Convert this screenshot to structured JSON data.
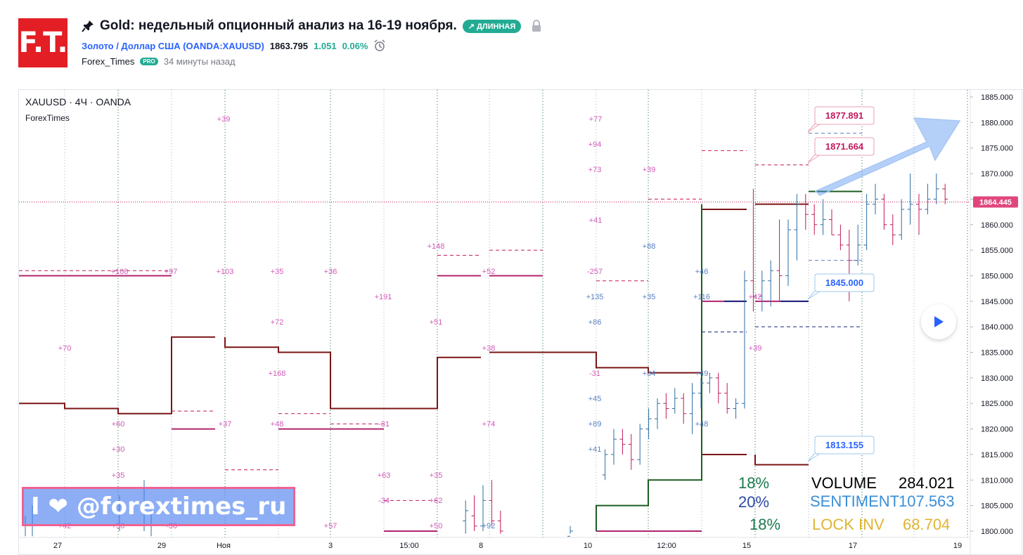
{
  "header": {
    "logo_text": "F.T.",
    "title": "Gold: недельный опционный анализ на 16-19 ноября.",
    "badge": "↗ ДЛИННАЯ",
    "symbol_link": "Золото / Доллар США (OANDA:XAUUSD)",
    "price": "1863.795",
    "change_abs": "1.051",
    "change_pct": "0.06%",
    "author": "Forex_Times",
    "pro_badge": "PRO",
    "time_ago": "34 минуты назад"
  },
  "legend": {
    "symbol_line": "XAUUSD · 4Ч · OANDA",
    "indicator": "ForexTimes"
  },
  "price_badges": [
    "1877.891",
    "1871.664",
    "1845.000",
    "1813.155"
  ],
  "last_price_label": "1864.445",
  "banner_text": "I ❤ @forextimes_ru",
  "stats": {
    "pct_1": "18%",
    "pct_2": "20%",
    "pct_3": "18%",
    "volume_label": "VOLUME",
    "volume_value": "284.021",
    "sentiment_label": "SENTIMENT",
    "sentiment_value": "107.563",
    "lockinv_label": "LOCK INV",
    "lockinv_value": "68.704"
  },
  "colors": {
    "up": "#2e6da4",
    "down": "#c2185b",
    "level_dark": "#7b1416",
    "level_magenta": "#b0246e",
    "level_green": "#1b5e20",
    "label_magenta": "#d05bb7",
    "label_blue": "#5a7fc2"
  },
  "chart_data": {
    "type": "ohlc",
    "title": "XAUUSD · 4Ч · OANDA",
    "y_ticks": [
      "1885.000",
      "1880.000",
      "1875.000",
      "1870.000",
      "1865.000",
      "1860.000",
      "1855.000",
      "1850.000",
      "1845.000",
      "1840.000",
      "1835.000",
      "1830.000",
      "1825.000",
      "1820.000",
      "1815.000",
      "1810.000",
      "1805.000",
      "1800.000"
    ],
    "x_ticks": [
      "27",
      "29",
      "Ноя",
      "3",
      "15:00",
      "8",
      "10",
      "12:00",
      "15",
      "17",
      "19"
    ],
    "ylim": [
      1799,
      1887
    ],
    "last_price": 1864.445,
    "bars": [
      {
        "t": 0.5,
        "o": 1802,
        "h": 1806,
        "l": 1799,
        "c": 1804
      },
      {
        "t": 1.5,
        "o": 1803,
        "h": 1807,
        "l": 1800,
        "c": 1801
      },
      {
        "t": 2.5,
        "o": 1801,
        "h": 1809,
        "l": 1800,
        "c": 1806
      },
      {
        "t": 3.5,
        "o": 1806,
        "h": 1810,
        "l": 1801,
        "c": 1802
      },
      {
        "t": 4.5,
        "o": 1802,
        "h": 1804,
        "l": 1799,
        "c": 1800
      },
      {
        "t": 12.5,
        "o": 1799,
        "h": 1801,
        "l": 1799,
        "c": 1800
      },
      {
        "t": 16.5,
        "o": 1811,
        "h": 1816,
        "l": 1810,
        "c": 1815
      },
      {
        "t": 17.5,
        "o": 1815,
        "h": 1820,
        "l": 1813,
        "c": 1818
      },
      {
        "t": 18.5,
        "o": 1818,
        "h": 1820,
        "l": 1815,
        "c": 1817
      },
      {
        "t": 19.5,
        "o": 1817,
        "h": 1819,
        "l": 1812,
        "c": 1814
      },
      {
        "t": 20.5,
        "o": 1814,
        "h": 1821,
        "l": 1813,
        "c": 1820
      },
      {
        "t": 21.5,
        "o": 1820,
        "h": 1824,
        "l": 1818,
        "c": 1822
      },
      {
        "t": 22.5,
        "o": 1822,
        "h": 1826,
        "l": 1820,
        "c": 1825
      },
      {
        "t": 23.5,
        "o": 1825,
        "h": 1827,
        "l": 1822,
        "c": 1824
      },
      {
        "t": 24.5,
        "o": 1824,
        "h": 1828,
        "l": 1823,
        "c": 1826
      },
      {
        "t": 25.5,
        "o": 1826,
        "h": 1827,
        "l": 1821,
        "c": 1823
      },
      {
        "t": 26.5,
        "o": 1823,
        "h": 1829,
        "l": 1819,
        "c": 1827
      },
      {
        "t": 27.5,
        "o": 1827,
        "h": 1830,
        "l": 1824,
        "c": 1829
      },
      {
        "t": 28.5,
        "o": 1829,
        "h": 1831,
        "l": 1827,
        "c": 1830
      },
      {
        "t": 29.5,
        "o": 1830,
        "h": 1831,
        "l": 1825,
        "c": 1827
      },
      {
        "t": 30.5,
        "o": 1827,
        "h": 1829,
        "l": 1823,
        "c": 1824
      },
      {
        "t": 31.5,
        "o": 1824,
        "h": 1826,
        "l": 1822,
        "c": 1825
      },
      {
        "t": 32.5,
        "o": 1825,
        "h": 1851,
        "l": 1824,
        "c": 1849
      },
      {
        "t": 33.5,
        "o": 1849,
        "h": 1867,
        "l": 1843,
        "c": 1846
      },
      {
        "t": 34.5,
        "o": 1846,
        "h": 1851,
        "l": 1843,
        "c": 1849
      },
      {
        "t": 35.5,
        "o": 1849,
        "h": 1853,
        "l": 1844,
        "c": 1851
      },
      {
        "t": 36.5,
        "o": 1851,
        "h": 1861,
        "l": 1845,
        "c": 1850
      },
      {
        "t": 37.5,
        "o": 1850,
        "h": 1861,
        "l": 1848,
        "c": 1859
      },
      {
        "t": 38.5,
        "o": 1859,
        "h": 1866,
        "l": 1853,
        "c": 1864
      },
      {
        "t": 39.5,
        "o": 1864,
        "h": 1866,
        "l": 1859,
        "c": 1862
      },
      {
        "t": 40.5,
        "o": 1862,
        "h": 1864,
        "l": 1858,
        "c": 1860
      },
      {
        "t": 41.5,
        "o": 1860,
        "h": 1865,
        "l": 1858,
        "c": 1861
      },
      {
        "t": 42.5,
        "o": 1861,
        "h": 1863,
        "l": 1858,
        "c": 1858
      },
      {
        "t": 43.5,
        "o": 1858,
        "h": 1860,
        "l": 1855,
        "c": 1856
      },
      {
        "t": 44.5,
        "o": 1856,
        "h": 1859,
        "l": 1845,
        "c": 1853
      },
      {
        "t": 45.5,
        "o": 1853,
        "h": 1860,
        "l": 1852,
        "c": 1856
      },
      {
        "t": 46.5,
        "o": 1856,
        "h": 1866,
        "l": 1855,
        "c": 1864
      },
      {
        "t": 47.5,
        "o": 1864,
        "h": 1868,
        "l": 1862,
        "c": 1865
      },
      {
        "t": 48.5,
        "o": 1865,
        "h": 1866,
        "l": 1859,
        "c": 1860
      },
      {
        "t": 49.5,
        "o": 1860,
        "h": 1862,
        "l": 1856,
        "c": 1858
      },
      {
        "t": 50.5,
        "o": 1858,
        "h": 1865,
        "l": 1857,
        "c": 1863
      },
      {
        "t": 51.5,
        "o": 1863,
        "h": 1870,
        "l": 1860,
        "c": 1864
      },
      {
        "t": 52.5,
        "o": 1864,
        "h": 1866,
        "l": 1858,
        "c": 1863
      },
      {
        "t": 53.5,
        "o": 1863,
        "h": 1868,
        "l": 1862,
        "c": 1865
      },
      {
        "t": 54.5,
        "o": 1865,
        "h": 1870,
        "l": 1864,
        "c": 1867
      },
      {
        "t": 55.5,
        "o": 1867,
        "h": 1868,
        "l": 1864,
        "c": 1865
      }
    ],
    "level_labels": [
      "+39",
      "+77",
      "+94",
      "+73",
      "+39",
      "+41",
      "+148",
      "+108",
      "+97",
      "+103",
      "+35",
      "+36",
      "-257",
      "+52",
      "+88",
      "+191",
      "+135",
      "+35",
      "+116",
      "+42",
      "+46",
      "+72",
      "+51",
      "+86",
      "+70",
      "+38",
      "+39",
      "+168",
      "-31",
      "+34",
      "+49",
      "+60",
      "+37",
      "+48",
      "-31",
      "+45",
      "+74",
      "+89",
      "+48",
      "+30",
      "+41",
      "+35",
      "+63",
      "+35",
      "-34",
      "+62",
      "+50",
      "+57",
      "+92",
      "+42",
      "+50",
      "-30"
    ]
  }
}
